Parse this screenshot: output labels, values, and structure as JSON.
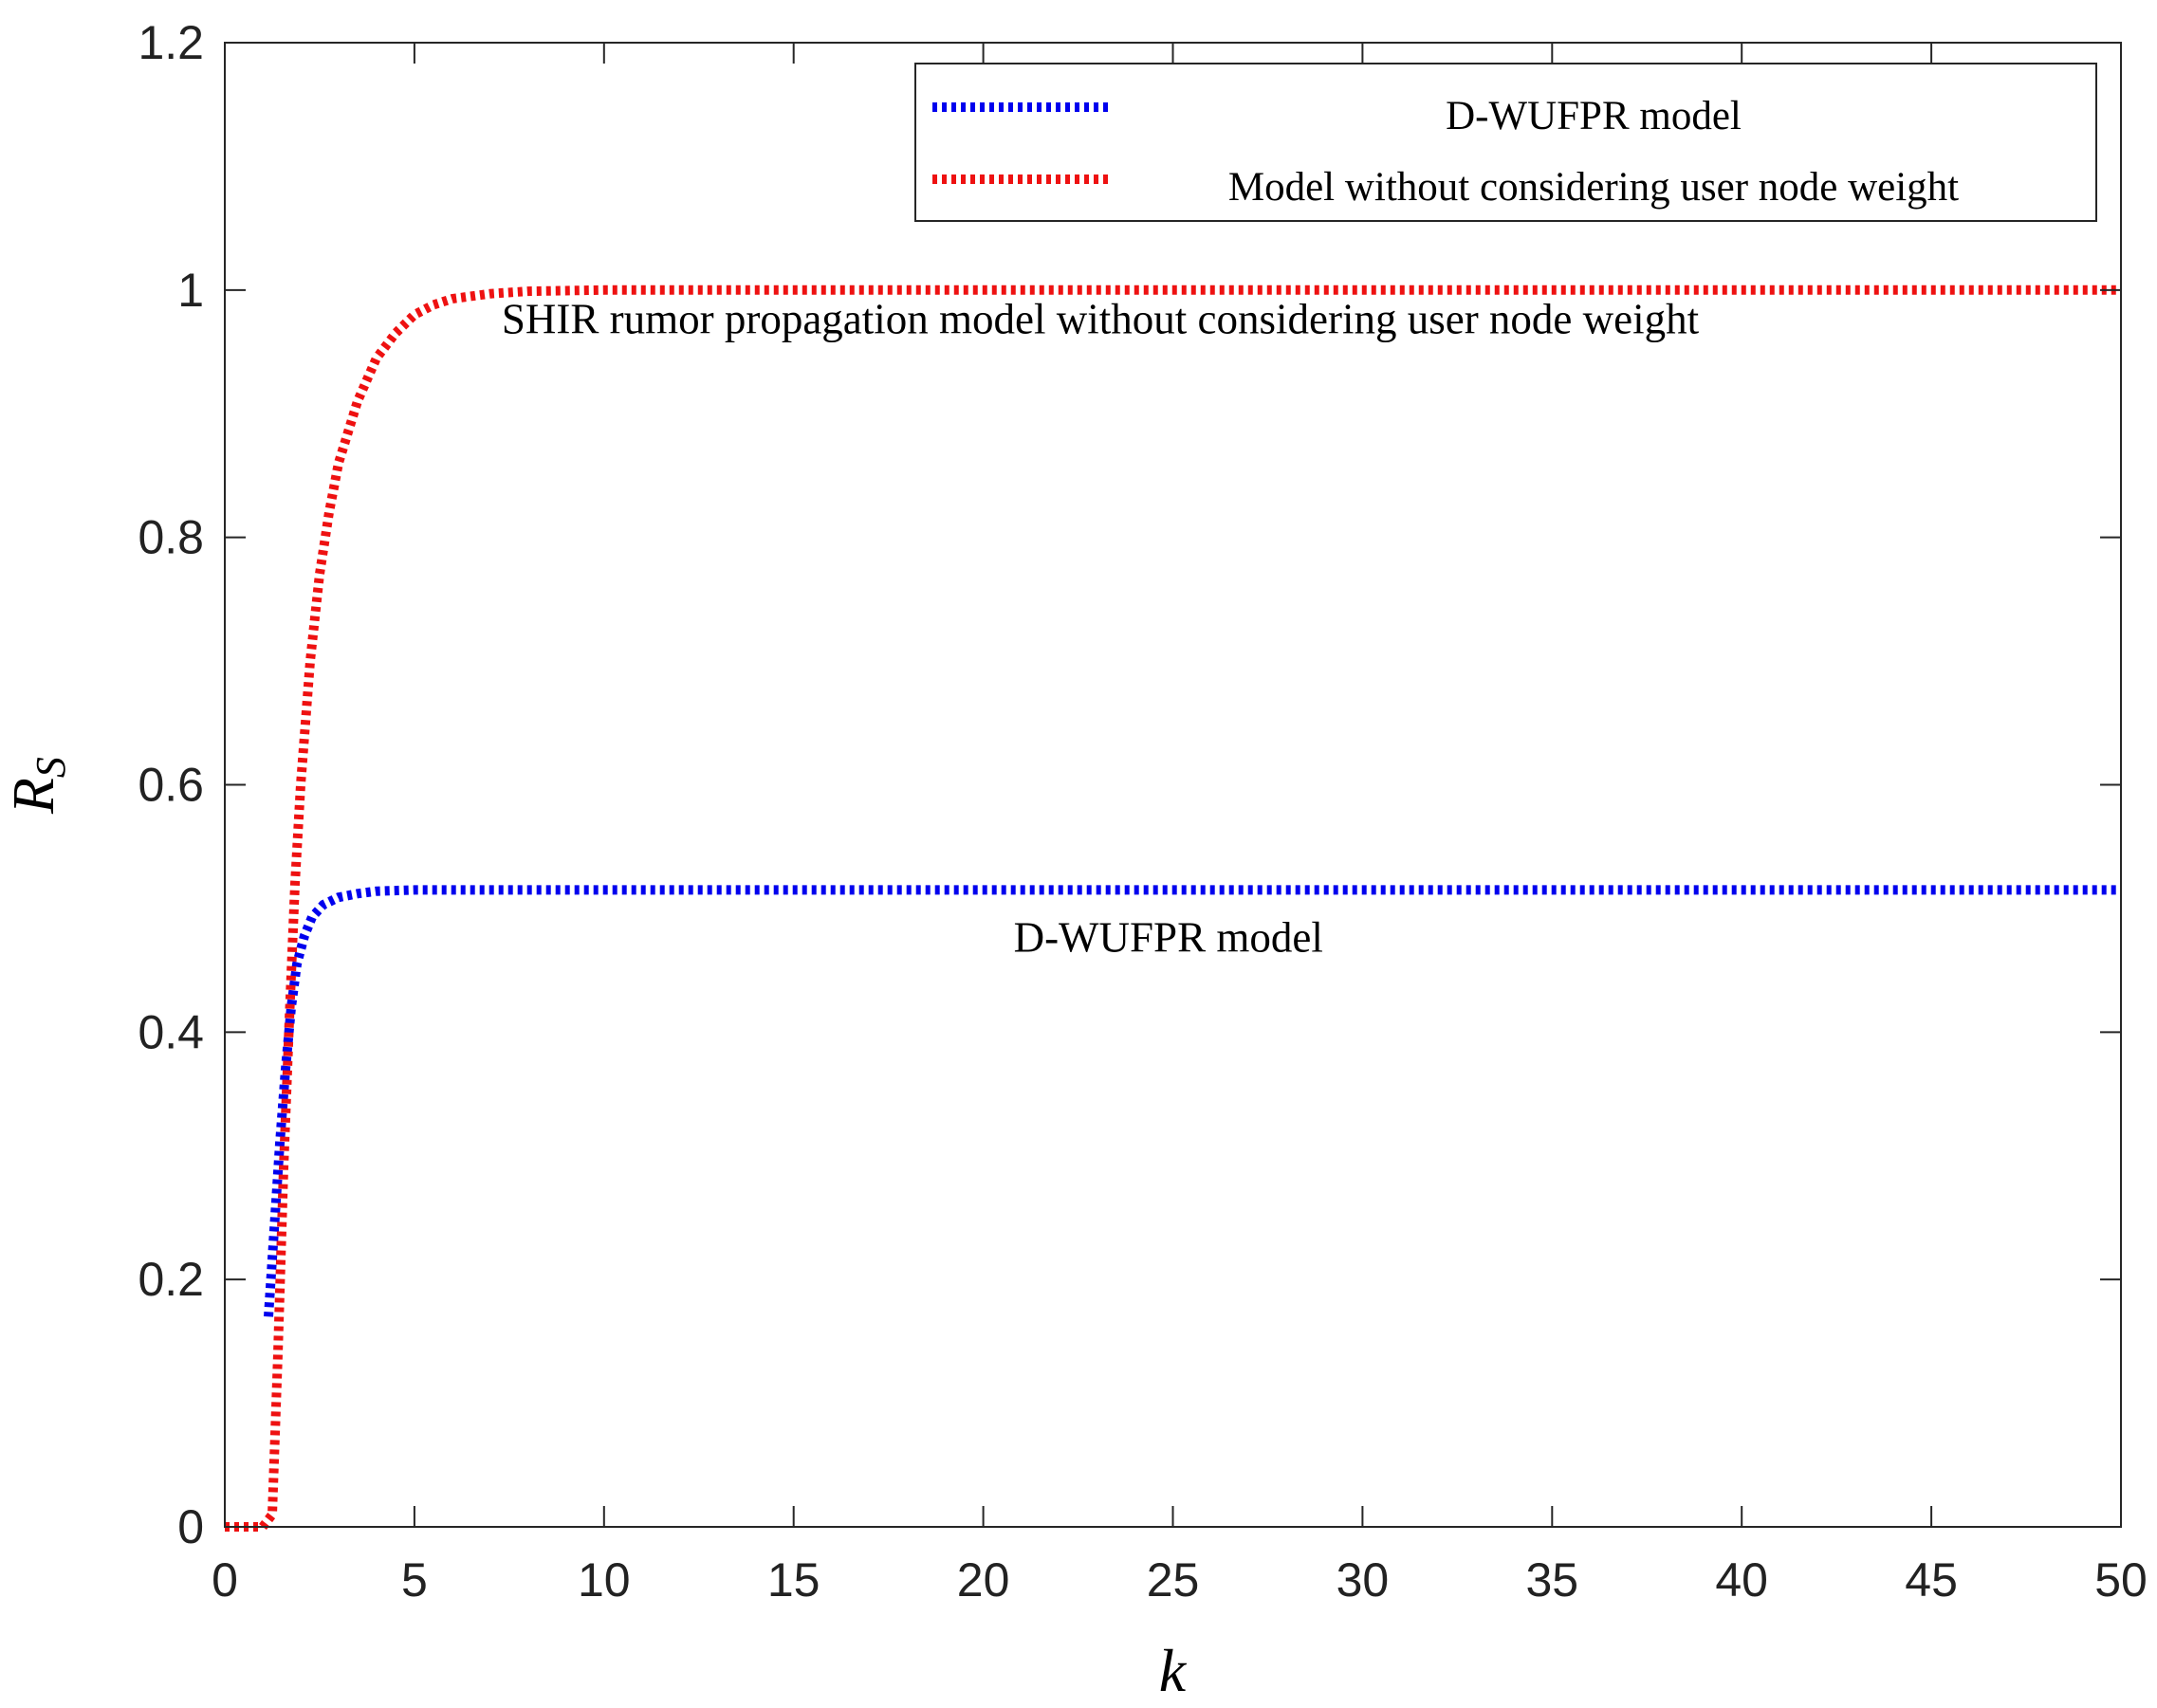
{
  "chart_data": {
    "type": "line",
    "title": "",
    "xlabel": "k",
    "ylabel": {
      "main": "R",
      "subscript": "S"
    },
    "xlim": [
      0,
      50
    ],
    "ylim": [
      0,
      1.2
    ],
    "grid": false,
    "legend_position": "top-right",
    "xticks": [
      0,
      5,
      10,
      15,
      20,
      25,
      30,
      35,
      40,
      45,
      50
    ],
    "xtick_labels": [
      "0",
      "5",
      "10",
      "15",
      "20",
      "25",
      "30",
      "35",
      "40",
      "45",
      "50"
    ],
    "yticks": [
      0,
      0.2,
      0.4,
      0.6,
      0.8,
      1,
      1.2
    ],
    "ytick_labels": [
      "0",
      "0.2",
      "0.4",
      "0.6",
      "0.8",
      "1",
      "1.2"
    ],
    "series": [
      {
        "name": "D-WUFPR model",
        "color": "#0000ee",
        "line_style": "dotted",
        "x": [
          1.15,
          1.3,
          1.45,
          1.6,
          1.75,
          1.9,
          2.1,
          2.3,
          2.6,
          3,
          3.5,
          4,
          5,
          7,
          10,
          20,
          30,
          40,
          50
        ],
        "y": [
          0.17,
          0.24,
          0.31,
          0.37,
          0.42,
          0.455,
          0.478,
          0.493,
          0.503,
          0.509,
          0.512,
          0.514,
          0.515,
          0.515,
          0.515,
          0.515,
          0.515,
          0.515,
          0.515
        ]
      },
      {
        "name": "Model without considering user node weight",
        "color": "#ee1111",
        "line_style": "dotted",
        "x": [
          0,
          0.5,
          1,
          1.25,
          1.4,
          1.55,
          1.7,
          1.85,
          2,
          2.25,
          2.5,
          2.75,
          3,
          3.5,
          4,
          4.5,
          5,
          5.5,
          6,
          7,
          8,
          10,
          15,
          20,
          30,
          40,
          50
        ],
        "y": [
          0,
          0,
          0,
          0.01,
          0.14,
          0.29,
          0.41,
          0.52,
          0.6,
          0.7,
          0.77,
          0.82,
          0.86,
          0.91,
          0.945,
          0.965,
          0.98,
          0.988,
          0.993,
          0.997,
          0.999,
          1,
          1,
          1,
          1,
          1,
          1
        ]
      }
    ],
    "annotations": [
      {
        "text": "SHIR rumor propagation model without considering user node weight",
        "x": 7.3,
        "y": 0.965
      },
      {
        "text": "D-WUFPR model",
        "x": 20.8,
        "y": 0.465
      }
    ]
  }
}
